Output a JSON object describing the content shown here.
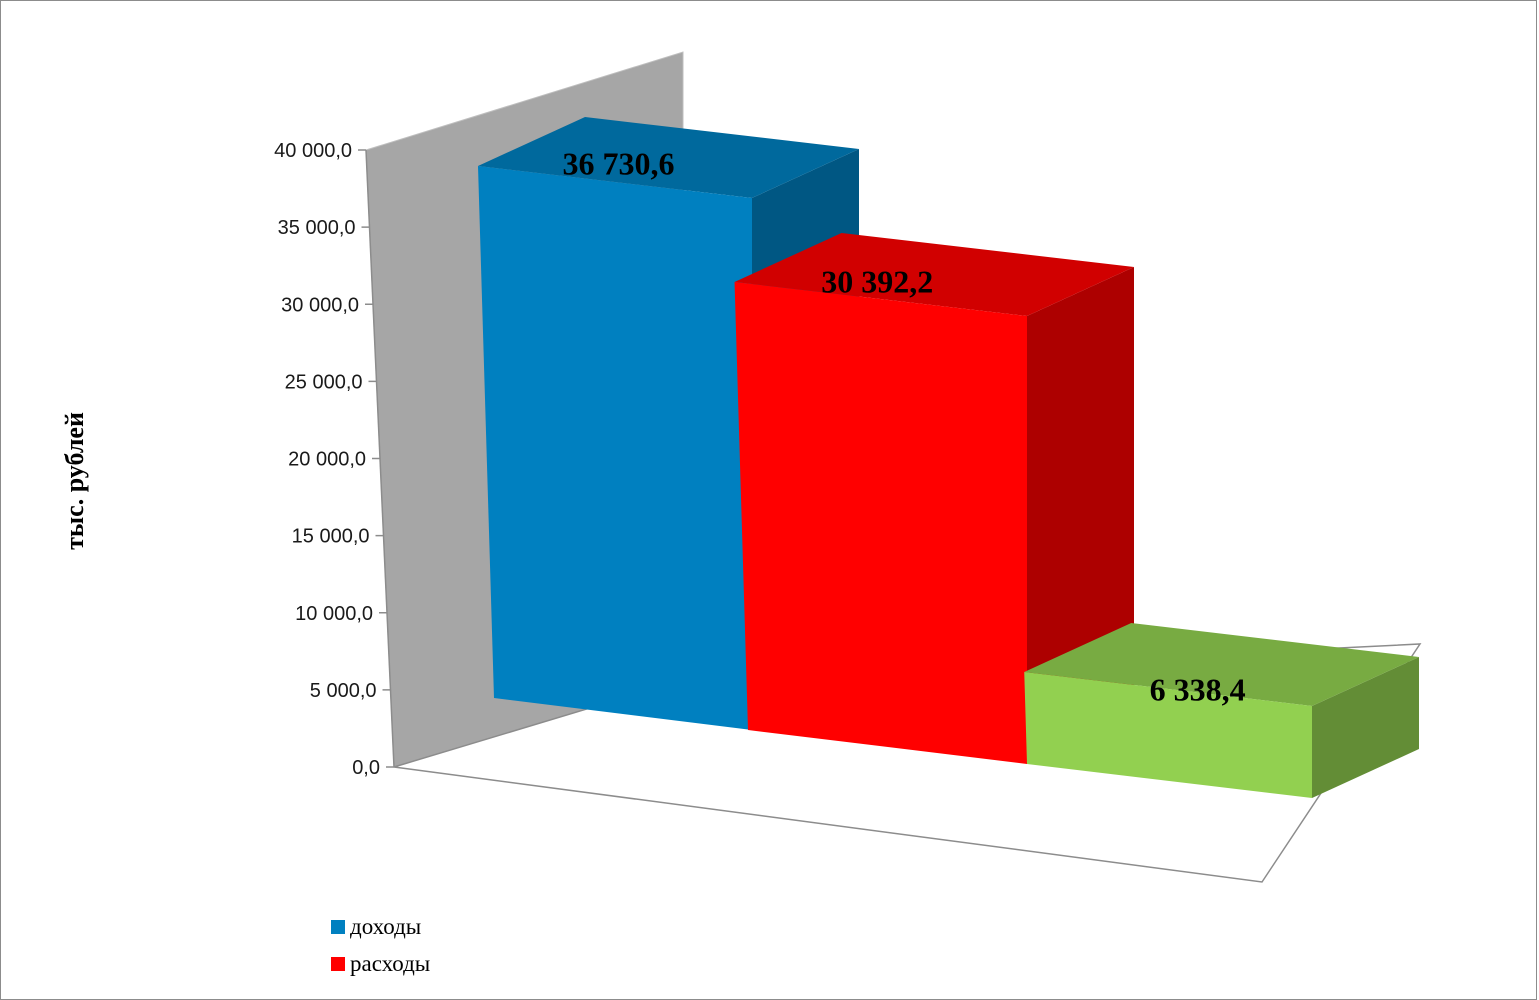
{
  "chart_data": {
    "type": "bar",
    "title": "",
    "xlabel": "",
    "ylabel": "тыс. рублей",
    "ylim": [
      0,
      40000
    ],
    "yticks": [
      0,
      5000,
      10000,
      15000,
      20000,
      25000,
      30000,
      35000,
      40000
    ],
    "ytick_labels": [
      "0,0",
      "5 000,0",
      "10 000,0",
      "15 000,0",
      "20 000,0",
      "25 000,0",
      "30 000,0",
      "35 000,0",
      "40 000,0"
    ],
    "series": [
      {
        "name": "доходы",
        "value": 36730.6,
        "label": "36 730,6",
        "color": "#0080c0"
      },
      {
        "name": "расходы",
        "value": 30392.2,
        "label": "30 392,2",
        "color": "#ff0000"
      },
      {
        "name": "",
        "value": 6338.4,
        "label": "6 338,4",
        "color": "#92d050"
      }
    ],
    "legend": {
      "position": "bottom-left",
      "entries": [
        {
          "label": "доходы",
          "color": "#0080c0"
        },
        {
          "label": "расходы",
          "color": "#ff0000"
        }
      ]
    },
    "grid": false,
    "style": "3d-column"
  }
}
